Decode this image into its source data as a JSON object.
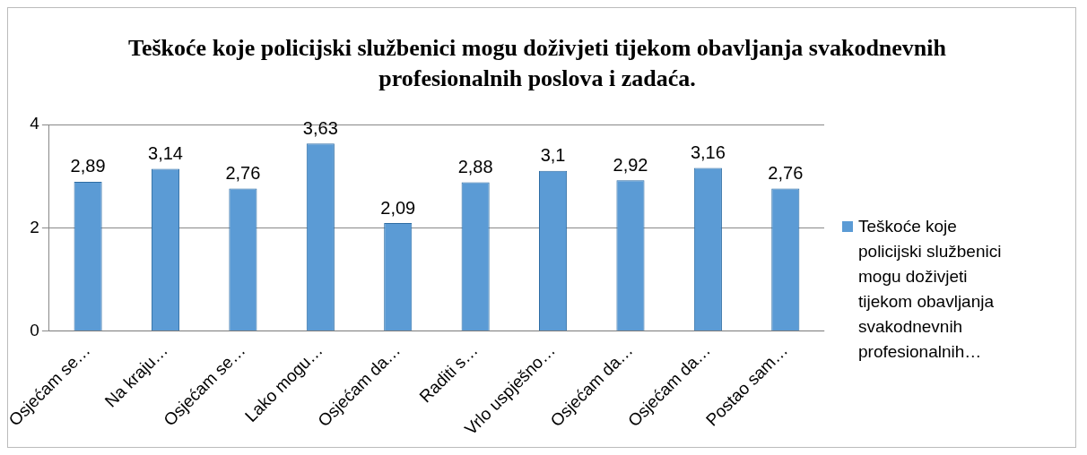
{
  "chart_data": {
    "type": "bar",
    "title": "Teškoće koje policijski službenici mogu doživjeti tijekom obavljanja svakodnevnih profesionalnih poslova i zadaća.",
    "categories": [
      "Osjećam se…",
      "Na kraju…",
      "Osjećam se…",
      "Lako mogu…",
      "Osjećam da…",
      "Raditi s…",
      "Vrlo uspješno…",
      "Osjećam da…",
      "Osjećam da…",
      "Postao sam…"
    ],
    "series": [
      {
        "name": "Teškoće koje policijski službenici mogu doživjeti tijekom obavljanja svakodnevnih profesionalnih…",
        "color": "#5b9bd5",
        "values": [
          2.89,
          3.14,
          2.76,
          3.63,
          2.09,
          2.88,
          3.1,
          2.92,
          3.16,
          2.76
        ],
        "value_labels": [
          "2,89",
          "3,14",
          "2,76",
          "3,63",
          "2,09",
          "2,88",
          "3,1",
          "2,92",
          "3,16",
          "2,76"
        ]
      }
    ],
    "ylim": [
      0,
      4
    ],
    "yticks": [
      0,
      2,
      4
    ],
    "grid": "y",
    "legend": "right"
  }
}
